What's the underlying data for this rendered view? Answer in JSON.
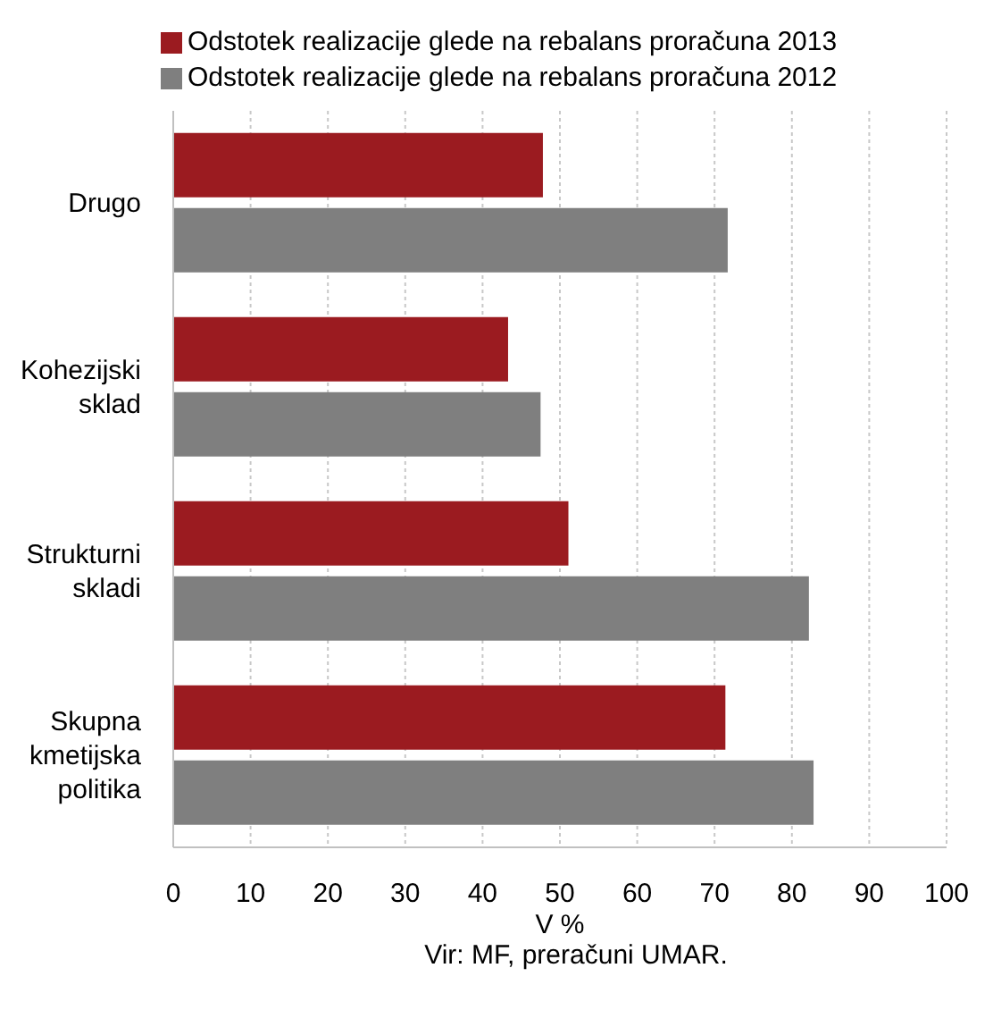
{
  "chart_data": {
    "type": "bar",
    "orientation": "horizontal",
    "categories": [
      "Drugo",
      "Kohezijski sklad",
      "Strukturni skladi",
      "Skupna kmetijska politika"
    ],
    "series": [
      {
        "name": "Odstotek realizacije glede na rebalans proračuna 2013",
        "color": "#9b1b20",
        "values": [
          47.8,
          43.3,
          51.1,
          71.4
        ]
      },
      {
        "name": "Odstotek realizacije glede na rebalans proračuna 2012",
        "color": "#7f7f7f",
        "values": [
          71.7,
          47.5,
          82.2,
          82.8
        ]
      }
    ],
    "xlim": [
      0,
      100
    ],
    "xticks": [
      0,
      10,
      20,
      30,
      40,
      50,
      60,
      70,
      80,
      90,
      100
    ],
    "xlabel": "V %",
    "grid": "x",
    "legend": "top left",
    "annotations": [
      "Vir: MF, preračuni UMAR."
    ]
  }
}
